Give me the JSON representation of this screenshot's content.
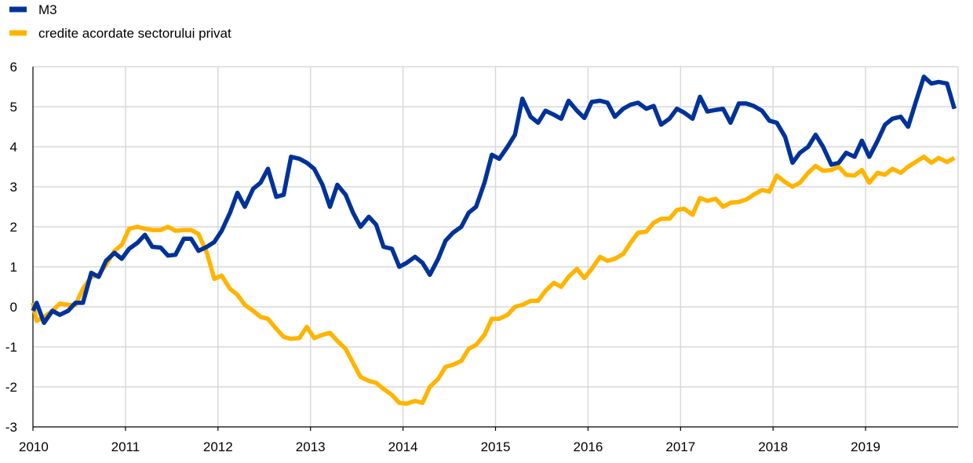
{
  "chart_data": {
    "type": "line",
    "title": "",
    "xlabel": "",
    "ylabel": "",
    "x_ticks": [
      "2010",
      "2011",
      "2012",
      "2013",
      "2014",
      "2015",
      "2016",
      "2017",
      "2018",
      "2019"
    ],
    "x_range": [
      2010.0,
      2020.0
    ],
    "y_ticks": [
      6,
      5,
      4,
      3,
      2,
      1,
      0,
      -1,
      -2,
      -3
    ],
    "ylim": [
      -3,
      6
    ],
    "grid": "horizontal and vertical",
    "legend_position": "top-left",
    "series": [
      {
        "name": "M3",
        "color": "#003299",
        "points": [
          [
            2010.0,
            -0.1
          ],
          [
            2010.04,
            0.1
          ],
          [
            2010.12,
            -0.4
          ],
          [
            2010.21,
            -0.1
          ],
          [
            2010.29,
            -0.2
          ],
          [
            2010.38,
            -0.1
          ],
          [
            2010.46,
            0.1
          ],
          [
            2010.54,
            0.1
          ],
          [
            2010.63,
            0.85
          ],
          [
            2010.71,
            0.75
          ],
          [
            2010.79,
            1.15
          ],
          [
            2010.88,
            1.35
          ],
          [
            2010.96,
            1.2
          ],
          [
            2011.04,
            1.45
          ],
          [
            2011.13,
            1.6
          ],
          [
            2011.21,
            1.8
          ],
          [
            2011.29,
            1.5
          ],
          [
            2011.38,
            1.48
          ],
          [
            2011.46,
            1.28
          ],
          [
            2011.54,
            1.3
          ],
          [
            2011.63,
            1.7
          ],
          [
            2011.71,
            1.7
          ],
          [
            2011.79,
            1.4
          ],
          [
            2011.88,
            1.5
          ],
          [
            2011.96,
            1.62
          ],
          [
            2012.04,
            1.9
          ],
          [
            2012.13,
            2.35
          ],
          [
            2012.21,
            2.85
          ],
          [
            2012.29,
            2.5
          ],
          [
            2012.38,
            2.95
          ],
          [
            2012.46,
            3.1
          ],
          [
            2012.54,
            3.45
          ],
          [
            2012.63,
            2.75
          ],
          [
            2012.71,
            2.8
          ],
          [
            2012.79,
            3.75
          ],
          [
            2012.88,
            3.7
          ],
          [
            2012.96,
            3.6
          ],
          [
            2013.04,
            3.45
          ],
          [
            2013.13,
            3.05
          ],
          [
            2013.21,
            2.5
          ],
          [
            2013.29,
            3.05
          ],
          [
            2013.38,
            2.8
          ],
          [
            2013.46,
            2.35
          ],
          [
            2013.54,
            2.0
          ],
          [
            2013.63,
            2.25
          ],
          [
            2013.71,
            2.05
          ],
          [
            2013.79,
            1.5
          ],
          [
            2013.88,
            1.45
          ],
          [
            2013.96,
            1.0
          ],
          [
            2014.04,
            1.1
          ],
          [
            2014.13,
            1.25
          ],
          [
            2014.21,
            1.1
          ],
          [
            2014.29,
            0.8
          ],
          [
            2014.38,
            1.2
          ],
          [
            2014.46,
            1.65
          ],
          [
            2014.54,
            1.85
          ],
          [
            2014.63,
            2.0
          ],
          [
            2014.71,
            2.35
          ],
          [
            2014.79,
            2.5
          ],
          [
            2014.88,
            3.1
          ],
          [
            2014.96,
            3.8
          ],
          [
            2015.04,
            3.7
          ],
          [
            2015.13,
            4.0
          ],
          [
            2015.21,
            4.3
          ],
          [
            2015.29,
            5.2
          ],
          [
            2015.38,
            4.75
          ],
          [
            2015.46,
            4.6
          ],
          [
            2015.54,
            4.9
          ],
          [
            2015.63,
            4.8
          ],
          [
            2015.71,
            4.7
          ],
          [
            2015.79,
            5.15
          ],
          [
            2015.88,
            4.9
          ],
          [
            2015.96,
            4.72
          ],
          [
            2016.04,
            5.12
          ],
          [
            2016.13,
            5.15
          ],
          [
            2016.21,
            5.1
          ],
          [
            2016.29,
            4.75
          ],
          [
            2016.38,
            4.95
          ],
          [
            2016.46,
            5.05
          ],
          [
            2016.54,
            5.1
          ],
          [
            2016.63,
            4.95
          ],
          [
            2016.71,
            5.02
          ],
          [
            2016.79,
            4.55
          ],
          [
            2016.88,
            4.7
          ],
          [
            2016.96,
            4.95
          ],
          [
            2017.04,
            4.85
          ],
          [
            2017.13,
            4.7
          ],
          [
            2017.21,
            5.25
          ],
          [
            2017.29,
            4.88
          ],
          [
            2017.38,
            4.92
          ],
          [
            2017.46,
            4.95
          ],
          [
            2017.54,
            4.6
          ],
          [
            2017.63,
            5.08
          ],
          [
            2017.71,
            5.08
          ],
          [
            2017.79,
            5.02
          ],
          [
            2017.88,
            4.9
          ],
          [
            2017.96,
            4.65
          ],
          [
            2018.04,
            4.6
          ],
          [
            2018.13,
            4.25
          ],
          [
            2018.21,
            3.6
          ],
          [
            2018.29,
            3.85
          ],
          [
            2018.38,
            4.0
          ],
          [
            2018.46,
            4.3
          ],
          [
            2018.54,
            4.0
          ],
          [
            2018.63,
            3.55
          ],
          [
            2018.71,
            3.6
          ],
          [
            2018.79,
            3.85
          ],
          [
            2018.88,
            3.75
          ],
          [
            2018.96,
            4.15
          ],
          [
            2019.04,
            3.75
          ],
          [
            2019.13,
            4.15
          ],
          [
            2019.21,
            4.55
          ],
          [
            2019.29,
            4.7
          ],
          [
            2019.38,
            4.75
          ],
          [
            2019.46,
            4.5
          ],
          [
            2019.54,
            5.1
          ],
          [
            2019.63,
            5.75
          ],
          [
            2019.71,
            5.58
          ],
          [
            2019.79,
            5.62
          ],
          [
            2019.88,
            5.58
          ],
          [
            2019.96,
            4.95
          ]
        ]
      },
      {
        "name": "credite acordate sectorului privat",
        "color": "#ffb400",
        "points": [
          [
            2010.0,
            0.1
          ],
          [
            2010.04,
            -0.35
          ],
          [
            2010.12,
            -0.25
          ],
          [
            2010.21,
            -0.1
          ],
          [
            2010.29,
            0.08
          ],
          [
            2010.38,
            0.05
          ],
          [
            2010.46,
            0.05
          ],
          [
            2010.54,
            0.45
          ],
          [
            2010.63,
            0.75
          ],
          [
            2010.71,
            0.8
          ],
          [
            2010.79,
            1.05
          ],
          [
            2010.88,
            1.4
          ],
          [
            2010.96,
            1.55
          ],
          [
            2011.04,
            1.95
          ],
          [
            2011.13,
            2.0
          ],
          [
            2011.21,
            1.95
          ],
          [
            2011.29,
            1.92
          ],
          [
            2011.38,
            1.92
          ],
          [
            2011.46,
            2.0
          ],
          [
            2011.54,
            1.9
          ],
          [
            2011.63,
            1.92
          ],
          [
            2011.71,
            1.92
          ],
          [
            2011.79,
            1.82
          ],
          [
            2011.88,
            1.35
          ],
          [
            2011.96,
            0.7
          ],
          [
            2012.04,
            0.78
          ],
          [
            2012.13,
            0.45
          ],
          [
            2012.21,
            0.3
          ],
          [
            2012.29,
            0.05
          ],
          [
            2012.38,
            -0.1
          ],
          [
            2012.46,
            -0.25
          ],
          [
            2012.54,
            -0.3
          ],
          [
            2012.63,
            -0.55
          ],
          [
            2012.71,
            -0.75
          ],
          [
            2012.79,
            -0.8
          ],
          [
            2012.88,
            -0.78
          ],
          [
            2012.96,
            -0.5
          ],
          [
            2013.04,
            -0.78
          ],
          [
            2013.13,
            -0.7
          ],
          [
            2013.21,
            -0.65
          ],
          [
            2013.29,
            -0.85
          ],
          [
            2013.38,
            -1.05
          ],
          [
            2013.46,
            -1.4
          ],
          [
            2013.54,
            -1.75
          ],
          [
            2013.63,
            -1.85
          ],
          [
            2013.71,
            -1.9
          ],
          [
            2013.79,
            -2.05
          ],
          [
            2013.88,
            -2.2
          ],
          [
            2013.96,
            -2.4
          ],
          [
            2014.04,
            -2.42
          ],
          [
            2014.13,
            -2.35
          ],
          [
            2014.21,
            -2.4
          ],
          [
            2014.29,
            -2.0
          ],
          [
            2014.38,
            -1.8
          ],
          [
            2014.46,
            -1.5
          ],
          [
            2014.54,
            -1.45
          ],
          [
            2014.63,
            -1.35
          ],
          [
            2014.71,
            -1.05
          ],
          [
            2014.79,
            -0.95
          ],
          [
            2014.88,
            -0.7
          ],
          [
            2014.96,
            -0.3
          ],
          [
            2015.04,
            -0.3
          ],
          [
            2015.13,
            -0.2
          ],
          [
            2015.21,
            0.0
          ],
          [
            2015.29,
            0.05
          ],
          [
            2015.38,
            0.15
          ],
          [
            2015.46,
            0.15
          ],
          [
            2015.54,
            0.4
          ],
          [
            2015.63,
            0.6
          ],
          [
            2015.71,
            0.5
          ],
          [
            2015.79,
            0.75
          ],
          [
            2015.88,
            0.95
          ],
          [
            2015.96,
            0.72
          ],
          [
            2016.04,
            0.95
          ],
          [
            2016.13,
            1.25
          ],
          [
            2016.21,
            1.15
          ],
          [
            2016.29,
            1.2
          ],
          [
            2016.38,
            1.32
          ],
          [
            2016.46,
            1.6
          ],
          [
            2016.54,
            1.85
          ],
          [
            2016.63,
            1.88
          ],
          [
            2016.71,
            2.1
          ],
          [
            2016.79,
            2.2
          ],
          [
            2016.88,
            2.2
          ],
          [
            2016.96,
            2.42
          ],
          [
            2017.04,
            2.45
          ],
          [
            2017.13,
            2.3
          ],
          [
            2017.21,
            2.72
          ],
          [
            2017.29,
            2.65
          ],
          [
            2017.38,
            2.7
          ],
          [
            2017.46,
            2.5
          ],
          [
            2017.54,
            2.6
          ],
          [
            2017.63,
            2.62
          ],
          [
            2017.71,
            2.68
          ],
          [
            2017.79,
            2.8
          ],
          [
            2017.88,
            2.92
          ],
          [
            2017.96,
            2.88
          ],
          [
            2018.04,
            3.28
          ],
          [
            2018.13,
            3.12
          ],
          [
            2018.21,
            3.0
          ],
          [
            2018.29,
            3.1
          ],
          [
            2018.38,
            3.35
          ],
          [
            2018.46,
            3.52
          ],
          [
            2018.54,
            3.4
          ],
          [
            2018.63,
            3.42
          ],
          [
            2018.71,
            3.5
          ],
          [
            2018.79,
            3.3
          ],
          [
            2018.88,
            3.28
          ],
          [
            2018.96,
            3.42
          ],
          [
            2019.04,
            3.1
          ],
          [
            2019.13,
            3.35
          ],
          [
            2019.21,
            3.3
          ],
          [
            2019.29,
            3.45
          ],
          [
            2019.38,
            3.35
          ],
          [
            2019.46,
            3.5
          ],
          [
            2019.54,
            3.62
          ],
          [
            2019.63,
            3.75
          ],
          [
            2019.71,
            3.6
          ],
          [
            2019.79,
            3.72
          ],
          [
            2019.88,
            3.62
          ],
          [
            2019.96,
            3.72
          ]
        ]
      }
    ]
  }
}
